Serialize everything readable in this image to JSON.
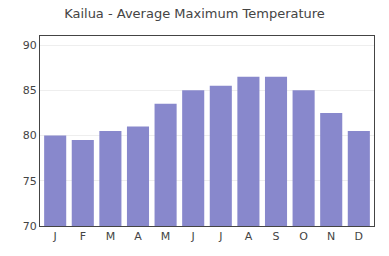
{
  "chart_data": {
    "type": "bar",
    "title": "Kailua - Average Maximum Temperature",
    "categories": [
      "J",
      "F",
      "M",
      "A",
      "M",
      "J",
      "J",
      "A",
      "S",
      "O",
      "N",
      "D"
    ],
    "values": [
      80,
      79.5,
      80.5,
      81,
      83.5,
      85,
      85.5,
      86.5,
      86.5,
      85,
      82.5,
      80.5
    ],
    "color": "#8888cc",
    "ylim": [
      70,
      91
    ],
    "yticks": [
      70,
      75,
      80,
      85,
      90
    ],
    "grid": true
  }
}
